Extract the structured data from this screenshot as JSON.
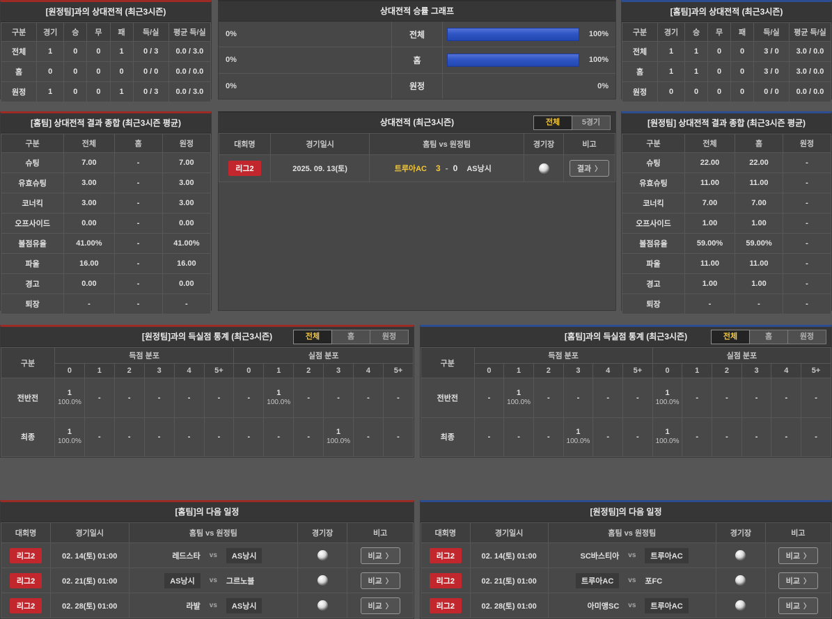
{
  "ui": {
    "vs_label": "vs",
    "score_dash": "-",
    "chevron": "〉"
  },
  "colors": {
    "accent_red": "#9b2b24",
    "accent_blue": "#2c4d92",
    "badge_red": "#c1272d",
    "tab_active_text": "#f3c73a",
    "bar_blue": "#2e55c4"
  },
  "h2h_away_table": {
    "title": "[원정팀]과의 상대전적 (최근3시즌)",
    "columns": [
      "구분",
      "경기",
      "승",
      "무",
      "패",
      "득/실",
      "평균 득/실"
    ],
    "rows": [
      [
        "전체",
        "1",
        "0",
        "0",
        "1",
        "0 / 3",
        "0.0 / 3.0"
      ],
      [
        "홈",
        "0",
        "0",
        "0",
        "0",
        "0 / 0",
        "0.0 / 0.0"
      ],
      [
        "원정",
        "1",
        "0",
        "0",
        "1",
        "0 / 3",
        "0.0 / 3.0"
      ]
    ]
  },
  "winrate_graph": {
    "title": "상대전적 승률 그래프",
    "rows": [
      {
        "label": "전체",
        "left_label": "0%",
        "left_value": 0,
        "right_label": "100%",
        "right_value": 100
      },
      {
        "label": "홈",
        "left_label": "0%",
        "left_value": 0,
        "right_label": "100%",
        "right_value": 100
      },
      {
        "label": "원정",
        "left_label": "0%",
        "left_value": 0,
        "right_label": "0%",
        "right_value": 0
      }
    ]
  },
  "h2h_home_table": {
    "title": "[홈팀]과의 상대전적 (최근3시즌)",
    "columns": [
      "구분",
      "경기",
      "승",
      "무",
      "패",
      "득/실",
      "평균 득/실"
    ],
    "rows": [
      [
        "전체",
        "1",
        "1",
        "0",
        "0",
        "3 / 0",
        "3.0 / 0.0"
      ],
      [
        "홈",
        "1",
        "1",
        "0",
        "0",
        "3 / 0",
        "3.0 / 0.0"
      ],
      [
        "원정",
        "0",
        "0",
        "0",
        "0",
        "0 / 0",
        "0.0 / 0.0"
      ]
    ]
  },
  "home_summary_table": {
    "title": "[홈팀] 상대전적 결과 종합 (최근3시즌 평균)",
    "columns": [
      "구분",
      "전체",
      "홈",
      "원정"
    ],
    "rows": [
      [
        "슈팅",
        "7.00",
        "-",
        "7.00"
      ],
      [
        "유효슈팅",
        "3.00",
        "-",
        "3.00"
      ],
      [
        "코너킥",
        "3.00",
        "-",
        "3.00"
      ],
      [
        "오프사이드",
        "0.00",
        "-",
        "0.00"
      ],
      [
        "볼점유율",
        "41.00%",
        "-",
        "41.00%"
      ],
      [
        "파울",
        "16.00",
        "-",
        "16.00"
      ],
      [
        "경고",
        "0.00",
        "-",
        "0.00"
      ],
      [
        "퇴장",
        "-",
        "-",
        "-"
      ]
    ]
  },
  "away_summary_table": {
    "title": "[원정팀] 상대전적 결과 종합 (최근3시즌 평균)",
    "columns": [
      "구분",
      "전체",
      "홈",
      "원정"
    ],
    "rows": [
      [
        "슈팅",
        "22.00",
        "22.00",
        "-"
      ],
      [
        "유효슈팅",
        "11.00",
        "11.00",
        "-"
      ],
      [
        "코너킥",
        "7.00",
        "7.00",
        "-"
      ],
      [
        "오프사이드",
        "1.00",
        "1.00",
        "-"
      ],
      [
        "볼점유율",
        "59.00%",
        "59.00%",
        "-"
      ],
      [
        "파울",
        "11.00",
        "11.00",
        "-"
      ],
      [
        "경고",
        "1.00",
        "1.00",
        "-"
      ],
      [
        "퇴장",
        "-",
        "-",
        "-"
      ]
    ]
  },
  "h2h_matches": {
    "title": "상대전적 (최근3시즌)",
    "tabs": [
      {
        "label": "전체",
        "active": true
      },
      {
        "label": "5경기",
        "active": false
      }
    ],
    "columns": [
      "대회명",
      "경기일시",
      "홈팀  vs  원정팀",
      "경기장",
      "비고"
    ],
    "rows": [
      {
        "league": "리그2",
        "datetime": "2025. 09. 13(토)",
        "home": "트루아AC",
        "home_score": "3",
        "away_score": "0",
        "away": "AS낭시",
        "winner": "home",
        "button_label": "결과"
      }
    ]
  },
  "away_goal_stats": {
    "title": "[원정팀]과의 득실점 통계 (최근3시즌)",
    "tabs": [
      {
        "label": "전체",
        "active": true
      },
      {
        "label": "홈",
        "active": false
      },
      {
        "label": "원정",
        "active": false
      }
    ],
    "corner_label": "구분",
    "scored_header": "득점 분포",
    "conceded_header": "실점 분포",
    "bins": [
      "0",
      "1",
      "2",
      "3",
      "4",
      "5+"
    ],
    "rows": [
      {
        "label": "전반전",
        "scored": [
          {
            "count": "1",
            "pct": "100.0%"
          },
          "-",
          "-",
          "-",
          "-",
          "-"
        ],
        "conceded": [
          "-",
          {
            "count": "1",
            "pct": "100.0%"
          },
          "-",
          "-",
          "-",
          "-"
        ]
      },
      {
        "label": "최종",
        "scored": [
          {
            "count": "1",
            "pct": "100.0%"
          },
          "-",
          "-",
          "-",
          "-",
          "-"
        ],
        "conceded": [
          "-",
          "-",
          "-",
          {
            "count": "1",
            "pct": "100.0%"
          },
          "-",
          "-"
        ]
      }
    ]
  },
  "home_goal_stats": {
    "title": "[홈팀]과의 득실점 통계 (최근3시즌)",
    "tabs": [
      {
        "label": "전체",
        "active": true
      },
      {
        "label": "홈",
        "active": false
      },
      {
        "label": "원정",
        "active": false
      }
    ],
    "corner_label": "구분",
    "scored_header": "득점 분포",
    "conceded_header": "실점 분포",
    "bins": [
      "0",
      "1",
      "2",
      "3",
      "4",
      "5+"
    ],
    "rows": [
      {
        "label": "전반전",
        "scored": [
          "-",
          {
            "count": "1",
            "pct": "100.0%"
          },
          "-",
          "-",
          "-",
          "-"
        ],
        "conceded": [
          {
            "count": "1",
            "pct": "100.0%"
          },
          "-",
          "-",
          "-",
          "-",
          "-"
        ]
      },
      {
        "label": "최종",
        "scored": [
          "-",
          "-",
          "-",
          {
            "count": "1",
            "pct": "100.0%"
          },
          "-",
          "-"
        ],
        "conceded": [
          {
            "count": "1",
            "pct": "100.0%"
          },
          "-",
          "-",
          "-",
          "-",
          "-"
        ]
      }
    ]
  },
  "home_schedule": {
    "title": "[홈팀]의 다음 일정",
    "columns": [
      "대회명",
      "경기일시",
      "홈팀  vs  원정팀",
      "경기장",
      "비고"
    ],
    "rows": [
      {
        "league": "리그2",
        "datetime": "02. 14(토) 01:00",
        "home": "레드스타",
        "away": "AS낭시",
        "highlight": "away",
        "button_label": "비교"
      },
      {
        "league": "리그2",
        "datetime": "02. 21(토) 01:00",
        "home": "AS낭시",
        "away": "그르노블",
        "highlight": "home",
        "button_label": "비교"
      },
      {
        "league": "리그2",
        "datetime": "02. 28(토) 01:00",
        "home": "라발",
        "away": "AS낭시",
        "highlight": "away",
        "button_label": "비교"
      }
    ]
  },
  "away_schedule": {
    "title": "[원정팀]의 다음 일정",
    "columns": [
      "대회명",
      "경기일시",
      "홈팀  vs  원정팀",
      "경기장",
      "비고"
    ],
    "rows": [
      {
        "league": "리그2",
        "datetime": "02. 14(토) 01:00",
        "home": "SC바스티아",
        "away": "트루아AC",
        "highlight": "away",
        "button_label": "비교"
      },
      {
        "league": "리그2",
        "datetime": "02. 21(토) 01:00",
        "home": "트루아AC",
        "away": "포FC",
        "highlight": "home",
        "button_label": "비교"
      },
      {
        "league": "리그2",
        "datetime": "02. 28(토) 01:00",
        "home": "아미앵SC",
        "away": "트루아AC",
        "highlight": "away",
        "button_label": "비교"
      }
    ]
  }
}
